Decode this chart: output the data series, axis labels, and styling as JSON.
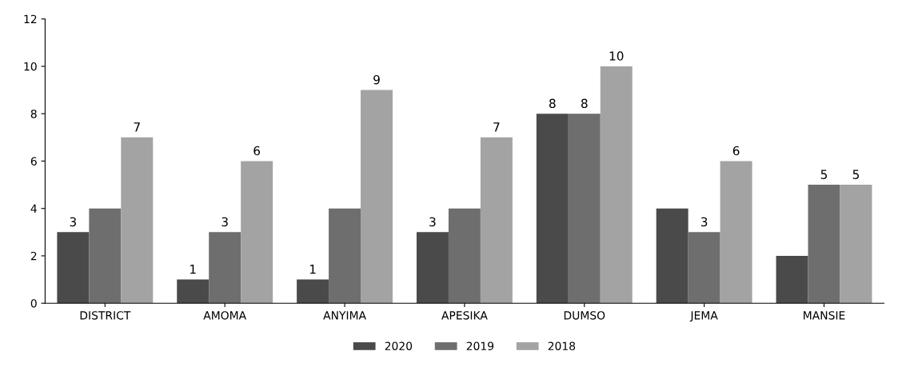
{
  "chart_data": {
    "type": "bar",
    "categories": [
      "DISTRICT",
      "AMOMA",
      "ANYIMA",
      "APESIKA",
      "DUMSO",
      "JEMA",
      "MANSIE"
    ],
    "series": [
      {
        "name": "2020",
        "color": "#4a4a4a",
        "values": [
          3,
          1,
          1,
          3,
          8,
          4,
          2
        ],
        "value_labels": [
          "3",
          "1",
          "1",
          "3",
          "8",
          null,
          null
        ]
      },
      {
        "name": "2019",
        "color": "#6e6e6e",
        "values": [
          4,
          3,
          4,
          4,
          8,
          3,
          5
        ],
        "value_labels": [
          null,
          "3",
          null,
          null,
          "8",
          "3",
          "5"
        ]
      },
      {
        "name": "2018",
        "color": "#a3a3a3",
        "values": [
          7,
          6,
          9,
          7,
          10,
          6,
          5
        ],
        "value_labels": [
          "7",
          "6",
          "9",
          "7",
          "10",
          "6",
          "5"
        ]
      }
    ],
    "ylim": [
      0,
      12
    ],
    "yticks": [
      0,
      2,
      4,
      6,
      8,
      10,
      12
    ],
    "legend": "bottom"
  }
}
